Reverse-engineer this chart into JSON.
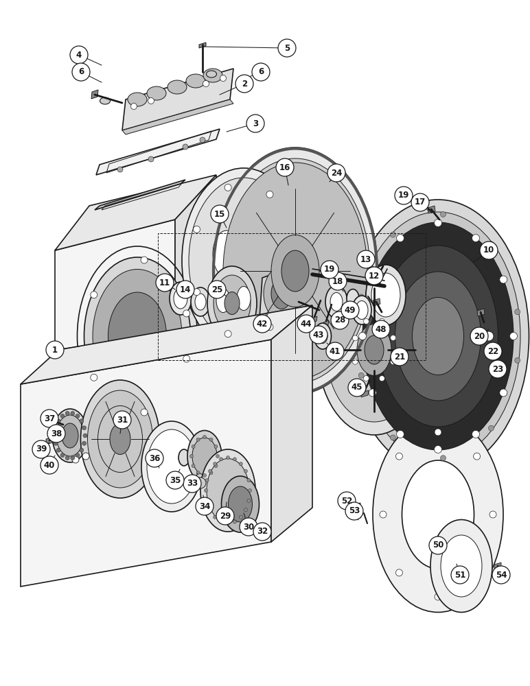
{
  "bg_color": "#ffffff",
  "lc": "#1a1a1a",
  "fig_w": 7.72,
  "fig_h": 10.0,
  "dpi": 100
}
